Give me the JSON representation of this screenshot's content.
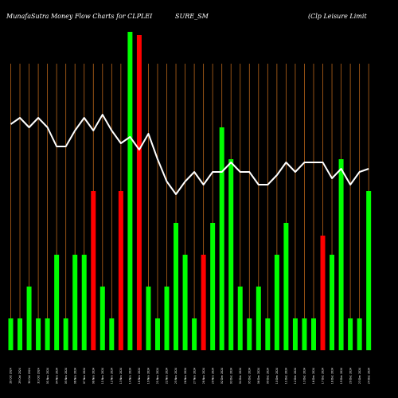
{
  "header": {
    "title_left": "MunafaSutra  Money Flow  Charts for CLPLEI",
    "title_mid": "SURE_SM",
    "title_right": "(Clp Leisure   Limit"
  },
  "colors": {
    "background": "#000000",
    "up": "#00ff00",
    "down": "#ff0000",
    "grid": "#b8651a",
    "line": "#ffffff"
  },
  "chart_data": {
    "type": "bar",
    "title": "MunafaSutra  Money Flow  Charts for CLPLEISURE_SM (Clp Leisure   Limit",
    "grid": true,
    "ylim": [
      0,
      100
    ],
    "categories": [
      "28 Oct 2024",
      "29 Oct 2024",
      "30 Oct 2024",
      "31 Oct 2024",
      "01 Nov 2024",
      "04 Nov 2024",
      "05 Nov 2024",
      "06 Nov 2024",
      "07 Nov 2024",
      "08 Nov 2024",
      "11 Nov 2024",
      "12 Nov 2024",
      "13 Nov 2024",
      "14 Nov 2024",
      "18 Nov 2024",
      "19 Nov 2024",
      "21 Nov 2024",
      "22 Nov 2024",
      "25 Nov 2024",
      "26 Nov 2024",
      "27 Nov 2024",
      "28 Nov 2024",
      "29 Nov 2024",
      "02 Dec 2024",
      "03 Dec 2024",
      "04 Dec 2024",
      "05 Dec 2024",
      "06 Dec 2024",
      "09 Dec 2024",
      "10 Dec 2024",
      "11 Dec 2024",
      "12 Dec 2024",
      "13 Dec 2024",
      "16 Dec 2024",
      "17 Dec 2024",
      "18 Dec 2024",
      "19 Dec 2024",
      "20 Dec 2024",
      "23 Dec 2024",
      "24 Dec 2024"
    ],
    "values": [
      10,
      10,
      20,
      10,
      10,
      30,
      10,
      30,
      30,
      50,
      20,
      10,
      50,
      100,
      99,
      20,
      10,
      20,
      40,
      30,
      10,
      30,
      40,
      70,
      60,
      20,
      10,
      20,
      10,
      30,
      40,
      10,
      10,
      10,
      36,
      30,
      60,
      10,
      10,
      50
    ],
    "colors": [
      "g",
      "g",
      "g",
      "g",
      "g",
      "g",
      "g",
      "g",
      "g",
      "r",
      "g",
      "g",
      "r",
      "g",
      "r",
      "g",
      "g",
      "g",
      "g",
      "g",
      "g",
      "r",
      "g",
      "g",
      "g",
      "g",
      "g",
      "g",
      "g",
      "g",
      "g",
      "g",
      "g",
      "g",
      "r",
      "g",
      "g",
      "g",
      "g",
      "g"
    ],
    "line_values": [
      71,
      73,
      70,
      73,
      70,
      64,
      64,
      69,
      73,
      69,
      74,
      69,
      65,
      67,
      63,
      68,
      60,
      53,
      49,
      53,
      56,
      52,
      56,
      56,
      59,
      56,
      56,
      52,
      52,
      55,
      59,
      56,
      59,
      59,
      59,
      54,
      57,
      52,
      56,
      57
    ]
  }
}
